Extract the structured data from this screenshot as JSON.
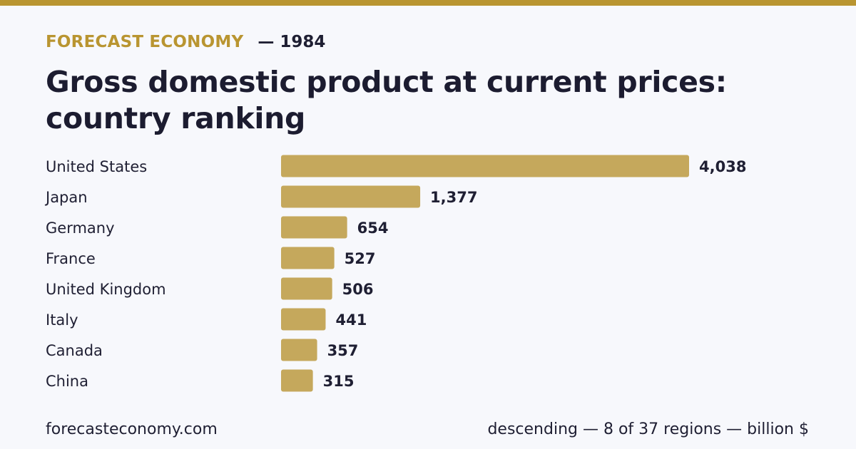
{
  "brand": "FORECAST ECONOMY",
  "year_label": "— 1984",
  "title": "Gross domestic product at current prices: country ranking",
  "footer": {
    "site": "forecasteconomy.com",
    "note": "descending — 8 of 37 regions — billion $"
  },
  "colors": {
    "accent": "#b99531",
    "bar": "#c5a85c",
    "text": "#1f1f33",
    "background": "#f7f8fc"
  },
  "chart_data": {
    "type": "bar",
    "orientation": "horizontal",
    "sort": "descending",
    "categories": [
      "United States",
      "Japan",
      "Germany",
      "France",
      "United Kingdom",
      "Italy",
      "Canada",
      "China"
    ],
    "values": [
      4038,
      1377,
      654,
      527,
      506,
      441,
      357,
      315
    ],
    "value_labels": [
      "4,038",
      "1,377",
      "654",
      "527",
      "506",
      "441",
      "357",
      "315"
    ],
    "unit": "billion $",
    "grid": false,
    "legend": "none"
  }
}
